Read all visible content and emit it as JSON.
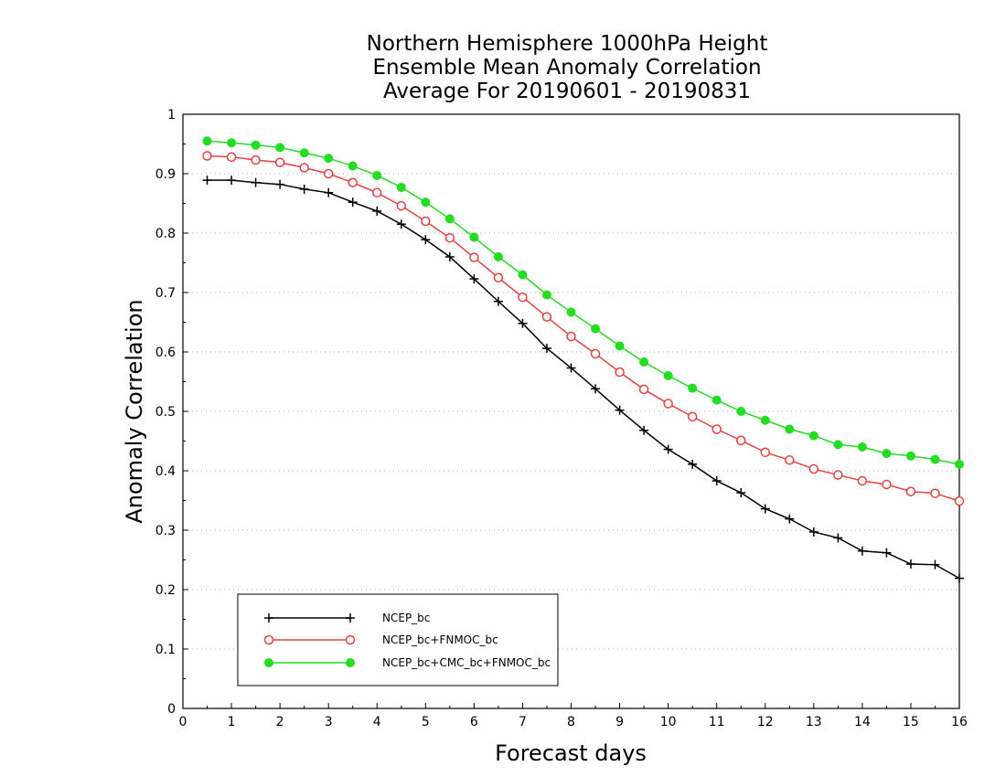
{
  "chart_data": {
    "type": "line",
    "title": [
      "Northern Hemisphere 1000hPa Height",
      "Ensemble Mean Anomaly Correlation",
      "Average For 20190601 - 20190831"
    ],
    "xlabel": "Forecast days",
    "ylabel": "Anomaly Correlation",
    "xlim": [
      0,
      16
    ],
    "ylim": [
      0,
      1
    ],
    "xticks": [
      "0",
      "1",
      "2",
      "3",
      "4",
      "5",
      "6",
      "7",
      "8",
      "9",
      "10",
      "11",
      "12",
      "13",
      "14",
      "15",
      "16"
    ],
    "yticks": [
      "0",
      "0.1",
      "0.2",
      "0.3",
      "0.4",
      "0.5",
      "0.6",
      "0.7",
      "0.8",
      "0.9",
      "1"
    ],
    "grid": "horizontal dotted",
    "legend_position": "bottom-left",
    "x": [
      0.5,
      1,
      1.5,
      2,
      2.5,
      3,
      3.5,
      4,
      4.5,
      5,
      5.5,
      6,
      6.5,
      7,
      7.5,
      8,
      8.5,
      9,
      9.5,
      10,
      10.5,
      11,
      11.5,
      12,
      12.5,
      13,
      13.5,
      14,
      14.5,
      15,
      15.5,
      16
    ],
    "series": [
      {
        "name": "NCEP_bc",
        "color": "#000000",
        "marker": "plus",
        "values": [
          0.889,
          0.889,
          0.885,
          0.882,
          0.874,
          0.868,
          0.852,
          0.837,
          0.815,
          0.789,
          0.76,
          0.723,
          0.685,
          0.648,
          0.606,
          0.573,
          0.538,
          0.502,
          0.468,
          0.436,
          0.411,
          0.383,
          0.363,
          0.336,
          0.319,
          0.297,
          0.287,
          0.265,
          0.262,
          0.243,
          0.242,
          0.219
        ]
      },
      {
        "name": "NCEP_bc+FNMOC_bc",
        "color": "#e84040",
        "marker": "open-circle",
        "values": [
          0.93,
          0.928,
          0.923,
          0.919,
          0.91,
          0.9,
          0.885,
          0.868,
          0.846,
          0.82,
          0.792,
          0.759,
          0.725,
          0.692,
          0.659,
          0.626,
          0.597,
          0.566,
          0.537,
          0.513,
          0.491,
          0.47,
          0.451,
          0.431,
          0.418,
          0.403,
          0.393,
          0.383,
          0.377,
          0.365,
          0.362,
          0.349
        ]
      },
      {
        "name": "NCEP_bc+CMC_bc+FNMOC_bc",
        "color": "#22dd22",
        "marker": "filled-circle",
        "values": [
          0.955,
          0.952,
          0.948,
          0.944,
          0.935,
          0.926,
          0.913,
          0.897,
          0.877,
          0.852,
          0.824,
          0.793,
          0.76,
          0.73,
          0.696,
          0.667,
          0.639,
          0.61,
          0.583,
          0.56,
          0.539,
          0.519,
          0.5,
          0.485,
          0.47,
          0.459,
          0.444,
          0.44,
          0.429,
          0.425,
          0.419,
          0.411
        ]
      }
    ]
  }
}
